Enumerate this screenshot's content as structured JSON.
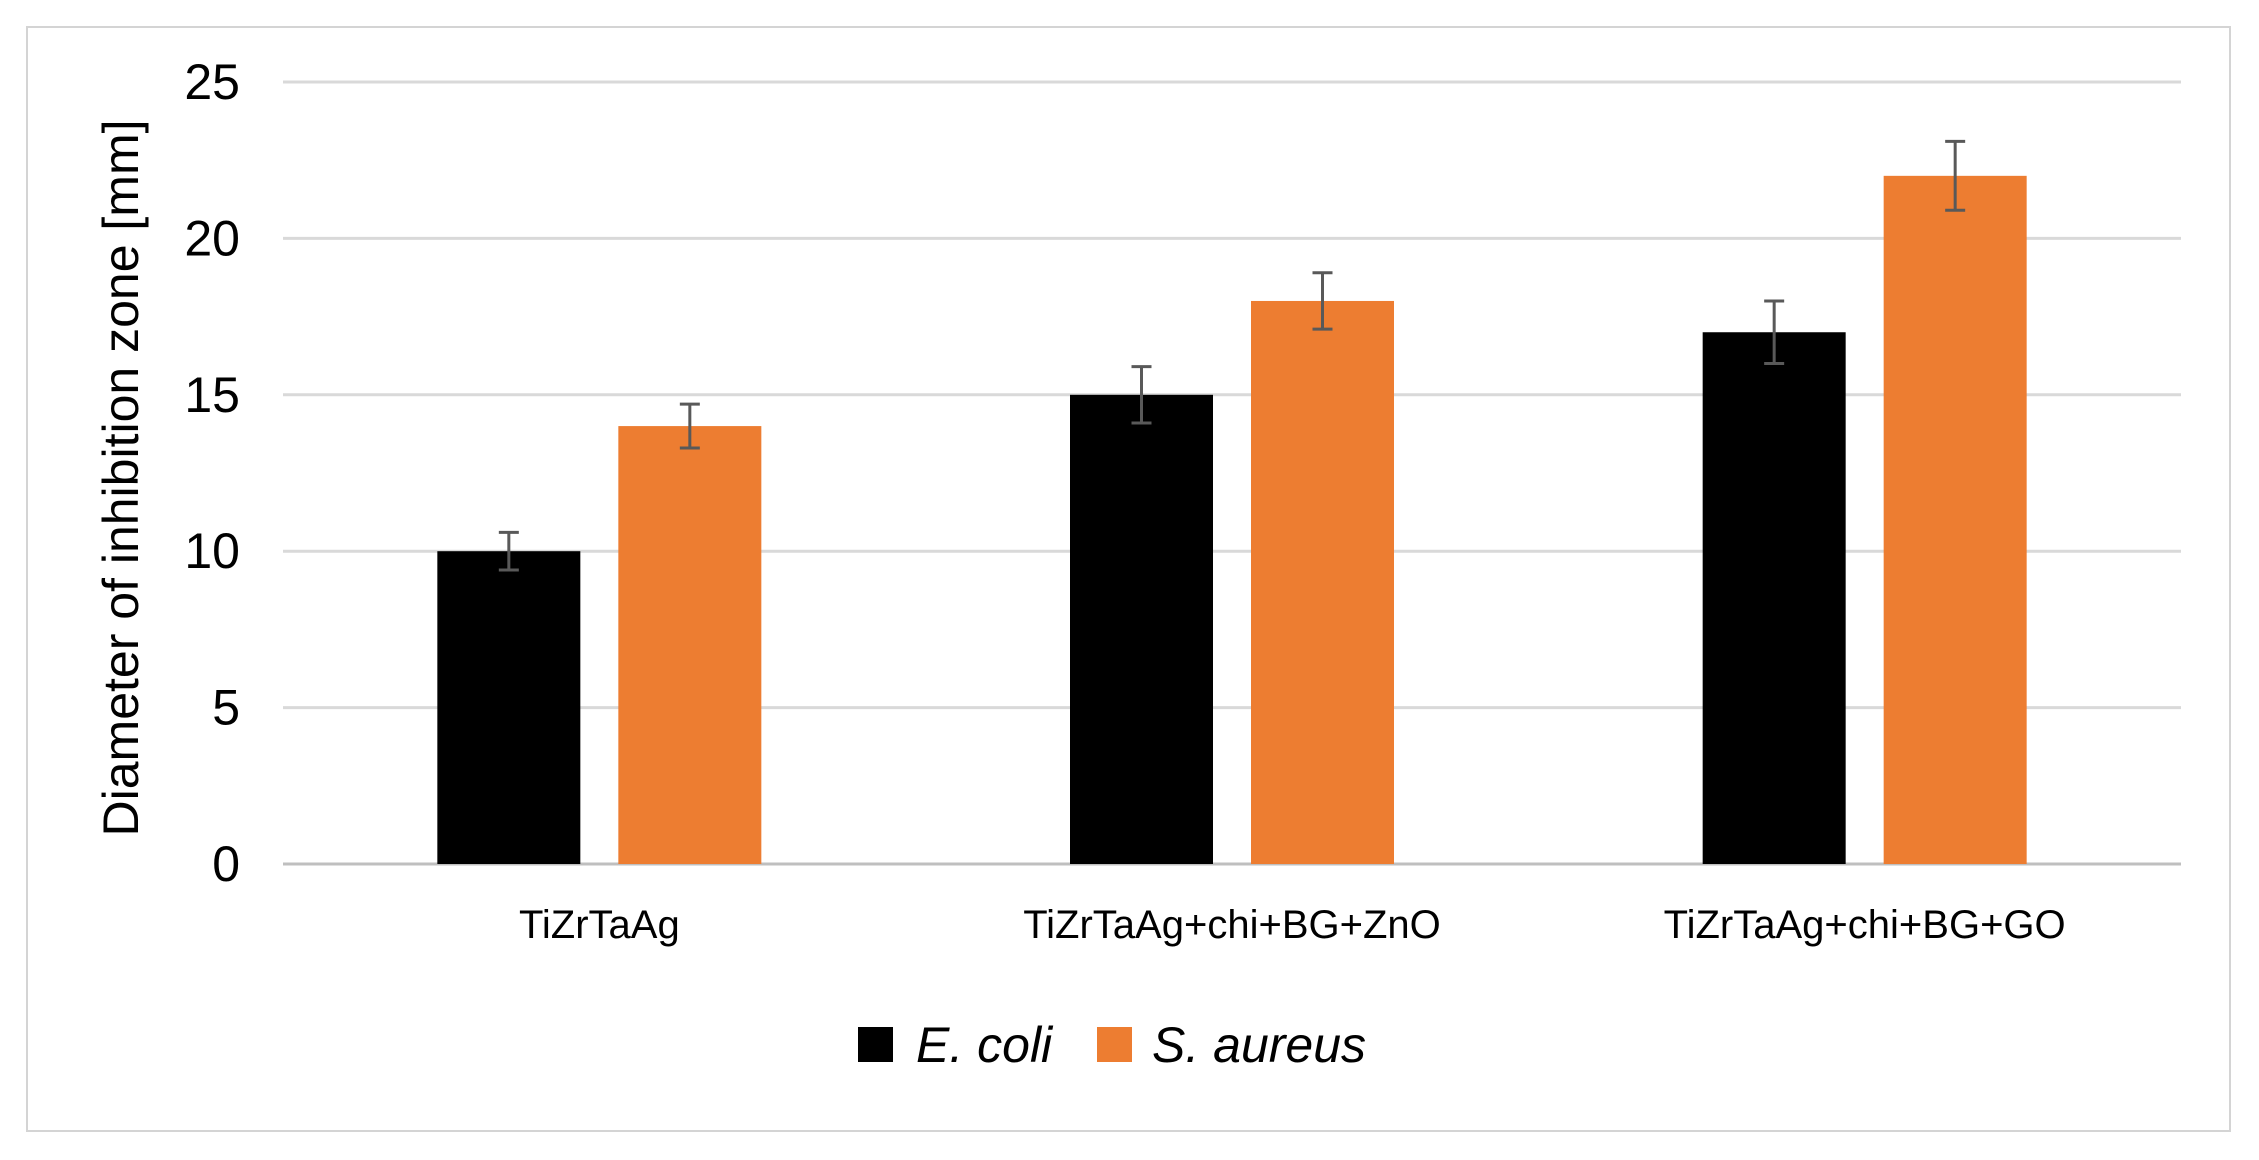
{
  "chart_data": {
    "type": "bar",
    "categories": [
      "TiZrTaAg",
      "TiZrTaAg+chi+BG+ZnO",
      "TiZrTaAg+chi+BG+GO"
    ],
    "series": [
      {
        "name": "E. coli",
        "color": "#000000",
        "values": [
          10,
          15,
          17
        ],
        "errors": [
          0.6,
          0.9,
          1.0
        ]
      },
      {
        "name": "S. aureus",
        "color": "#ed7d31",
        "values": [
          14,
          18,
          22
        ],
        "errors": [
          0.7,
          0.9,
          1.1
        ]
      }
    ],
    "ylabel": "Diameter of inhibition zone [mm]",
    "xlabel": "",
    "ylim": [
      0,
      25
    ],
    "yticks": [
      "0",
      "5",
      "10",
      "15",
      "20",
      "25"
    ],
    "grid": true,
    "legend_position": "bottom"
  }
}
